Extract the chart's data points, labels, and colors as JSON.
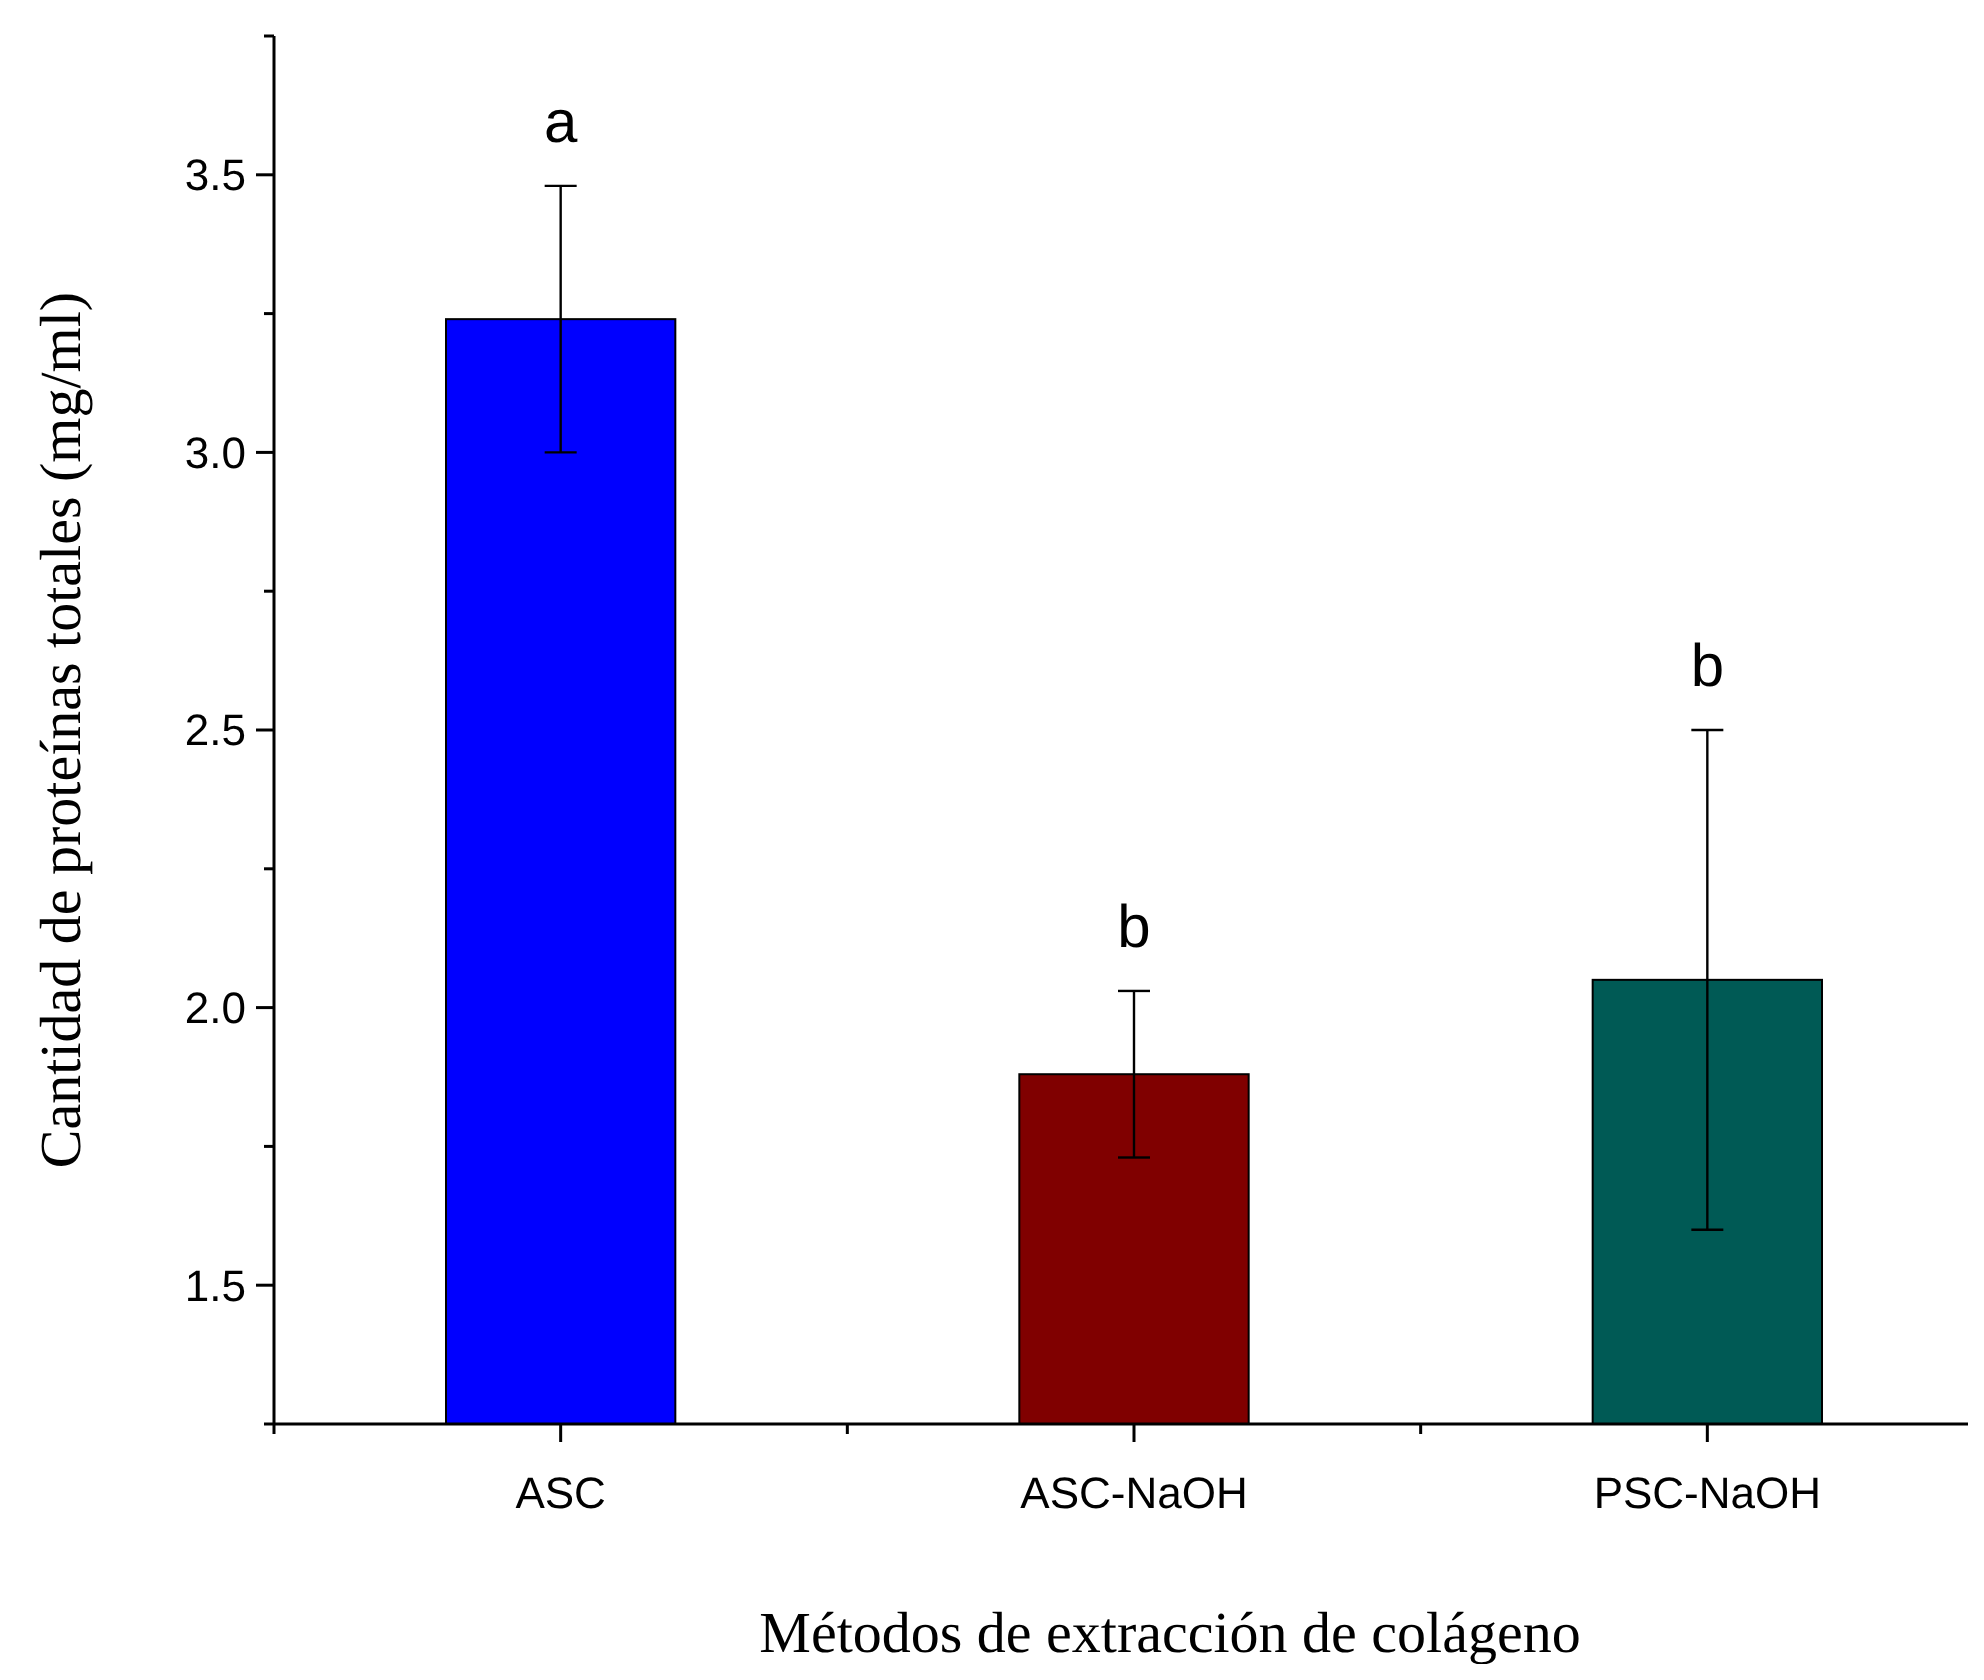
{
  "chart_data": {
    "type": "bar",
    "xlabel": "Métodos de extracción de colágeno",
    "ylabel": "Cantidad de proteínas totales (mg/ml)",
    "categories": [
      "ASC",
      "ASC-NaOH",
      "PSC-NaOH"
    ],
    "values": [
      3.24,
      1.88,
      2.05
    ],
    "errors": [
      0.24,
      0.15,
      0.45
    ],
    "colors": [
      "#0000ff",
      "#800000",
      "#005a55"
    ],
    "ylim": [
      1.25,
      3.75
    ],
    "yticks": [
      {
        "value": 1.25,
        "label": null
      },
      1.5,
      {
        "value": 1.75,
        "label": null
      },
      {
        "value": 2,
        "label": "2.0"
      },
      {
        "value": 2.25,
        "label": null
      },
      2.5,
      {
        "value": 2.75,
        "label": null
      },
      {
        "value": 3,
        "label": "3.0"
      },
      {
        "value": 3.25,
        "label": null
      },
      3.5,
      {
        "value": 3.75,
        "label": null
      }
    ],
    "annotations": [
      "a",
      "b",
      "b"
    ]
  }
}
